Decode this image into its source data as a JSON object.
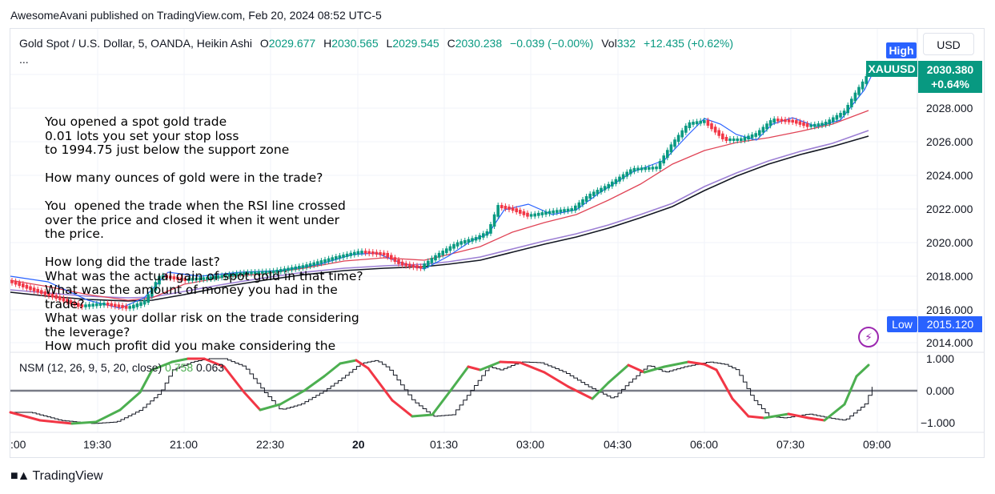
{
  "publisher": "AwesomeAvani published on TradingView.com, Feb 20, 2024 08:52 UTC-5",
  "legend": {
    "symbol": "Gold Spot / U.S. Dollar, 5, OANDA, Heikin Ashi",
    "o_label": "O",
    "o": "2029.677",
    "h_label": "H",
    "h": "2030.565",
    "l_label": "L",
    "l": "2029.545",
    "c_label": "C",
    "c": "2030.238",
    "change": "−0.039 (−0.00%)",
    "vol_label": "Vol",
    "vol": "332",
    "vol_change": "+12.435 (+0.62%)",
    "more": "..."
  },
  "currency": "USD",
  "badges": {
    "high": "High",
    "low": "Low",
    "low_price": "2015.120",
    "symbol": "XAUUSD",
    "price": "2030.380",
    "price_change": "+0.64%"
  },
  "price_axis": [
    "2028.000",
    "2026.000",
    "2024.000",
    "2022.000",
    "2020.000",
    "2018.000",
    "2016.000",
    "2014.000"
  ],
  "time_axis": [
    ":00",
    "19:30",
    "21:00",
    "22:30",
    "20",
    "01:30",
    "03:00",
    "04:30",
    "06:00",
    "07:30",
    "09:00"
  ],
  "question_text": "You opened a spot gold trade\n0.01 lots you set your stop loss\nto 1994.75 just below the support zone\n\nHow many ounces of gold were in the trade?\n\nYou  opened the trade when the RSI line crossed\nover the price and closed it when it went under\nthe price.\n\nHow long did the trade last?\nWhat was the actual gain of spot gold in that time?\nWhat was the amount of money you had in the\ntrade?\nWhat was your dollar risk on the trade considering\nthe leverage?\nHow much profit did you make considering the",
  "nsm": {
    "name": "NSM (12, 26, 9, 5, 20, close)",
    "v1": "0.758",
    "v2": "0.063",
    "axis": [
      "1.000",
      "0.000",
      "−1.000"
    ]
  },
  "brand": "TradingView",
  "colors": {
    "up": "#089981",
    "down": "#f23645",
    "accent": "#2962ff",
    "osc_green": "#4caf50",
    "osc_red": "#f23645"
  }
}
